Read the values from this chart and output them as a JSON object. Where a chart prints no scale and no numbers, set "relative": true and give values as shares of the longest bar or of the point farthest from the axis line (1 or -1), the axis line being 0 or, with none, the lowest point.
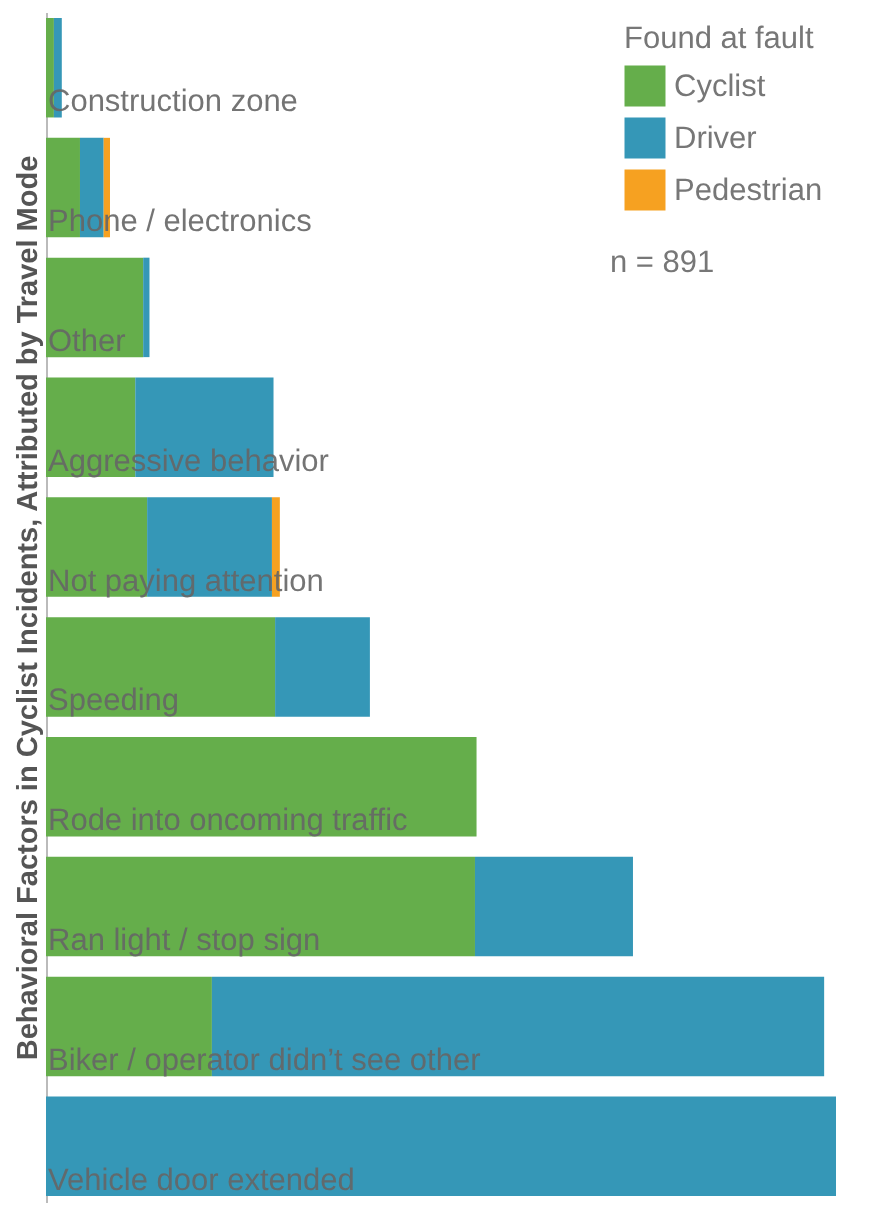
{
  "chart_data": {
    "type": "bar",
    "orientation": "horizontal",
    "stacked": true,
    "relative": true,
    "ylabel": "Behavioral Factors in Cyclist Incidents, Attributed by Travel Mode",
    "legend_title": "Found at fault",
    "legend": "top right",
    "annotations": [
      "n = 891"
    ],
    "categories": [
      "Construction zone",
      "Phone / electronics",
      "Other",
      "Aggressive behavior",
      "Not paying attention",
      "Speeding",
      "Rode into oncoming traffic",
      "Ran light / stop sign",
      "Biker / operator didn’t see other",
      "Vehicle door extended"
    ],
    "series": [
      {
        "name": "Cyclist",
        "color": "#65ae4b",
        "values": [
          0.01,
          0.043,
          0.123,
          0.113,
          0.128,
          0.29,
          0.545,
          0.543,
          0.21,
          null
        ]
      },
      {
        "name": "Driver",
        "color": "#3597b7",
        "values": [
          0.01,
          0.03,
          0.008,
          0.175,
          0.158,
          0.12,
          null,
          0.2,
          0.775,
          1
        ]
      },
      {
        "name": "Pedestrian",
        "color": "#f6a121",
        "values": [
          null,
          0.008,
          null,
          null,
          0.01,
          null,
          null,
          null,
          null,
          null
        ]
      }
    ]
  }
}
